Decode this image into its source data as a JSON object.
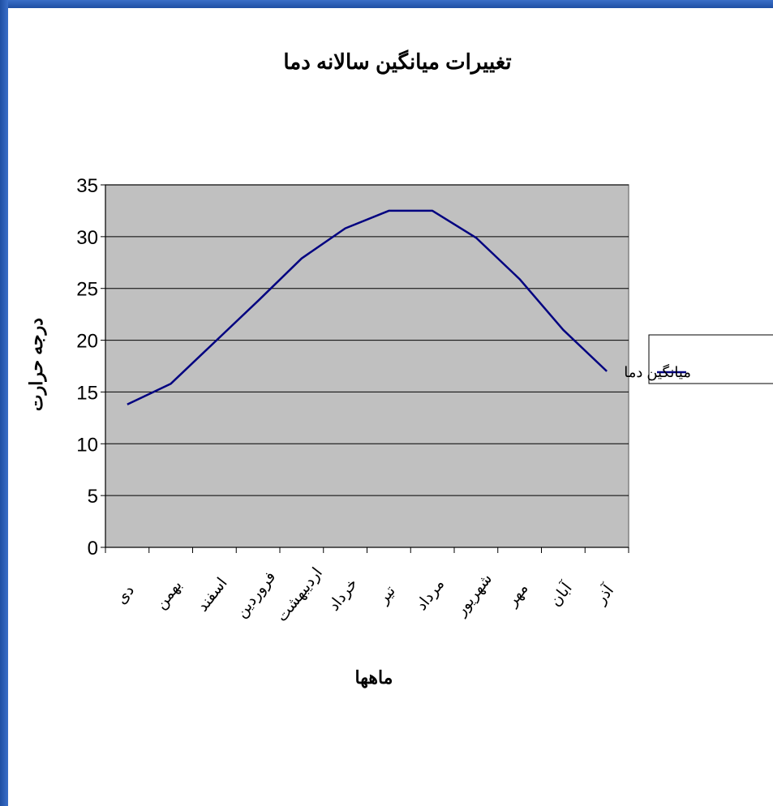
{
  "colors": {
    "frame": "#2a5db0",
    "plot_bg": "#c0c0c0",
    "line": "#000080",
    "grid": "#000000"
  },
  "chart_data": {
    "type": "line",
    "title": "تغییرات میانگین سالانه دما",
    "xlabel": "ماهها",
    "ylabel": "درجه حرارت",
    "categories": [
      "دی",
      "بهمن",
      "اسفند",
      "فروردین",
      "اردیبهشت",
      "خرداد",
      "تیر",
      "مرداد",
      "شهریور",
      "مهر",
      "آبان",
      "آذر"
    ],
    "series": [
      {
        "name": "میانگین دما",
        "values": [
          13.8,
          15.8,
          19.8,
          23.8,
          27.9,
          30.8,
          32.5,
          32.5,
          29.9,
          25.9,
          21.0,
          17.0
        ]
      }
    ],
    "ylim": [
      0,
      35
    ],
    "yticks": [
      0,
      5,
      10,
      15,
      20,
      25,
      30,
      35
    ],
    "grid": true,
    "legend_position": "right"
  }
}
